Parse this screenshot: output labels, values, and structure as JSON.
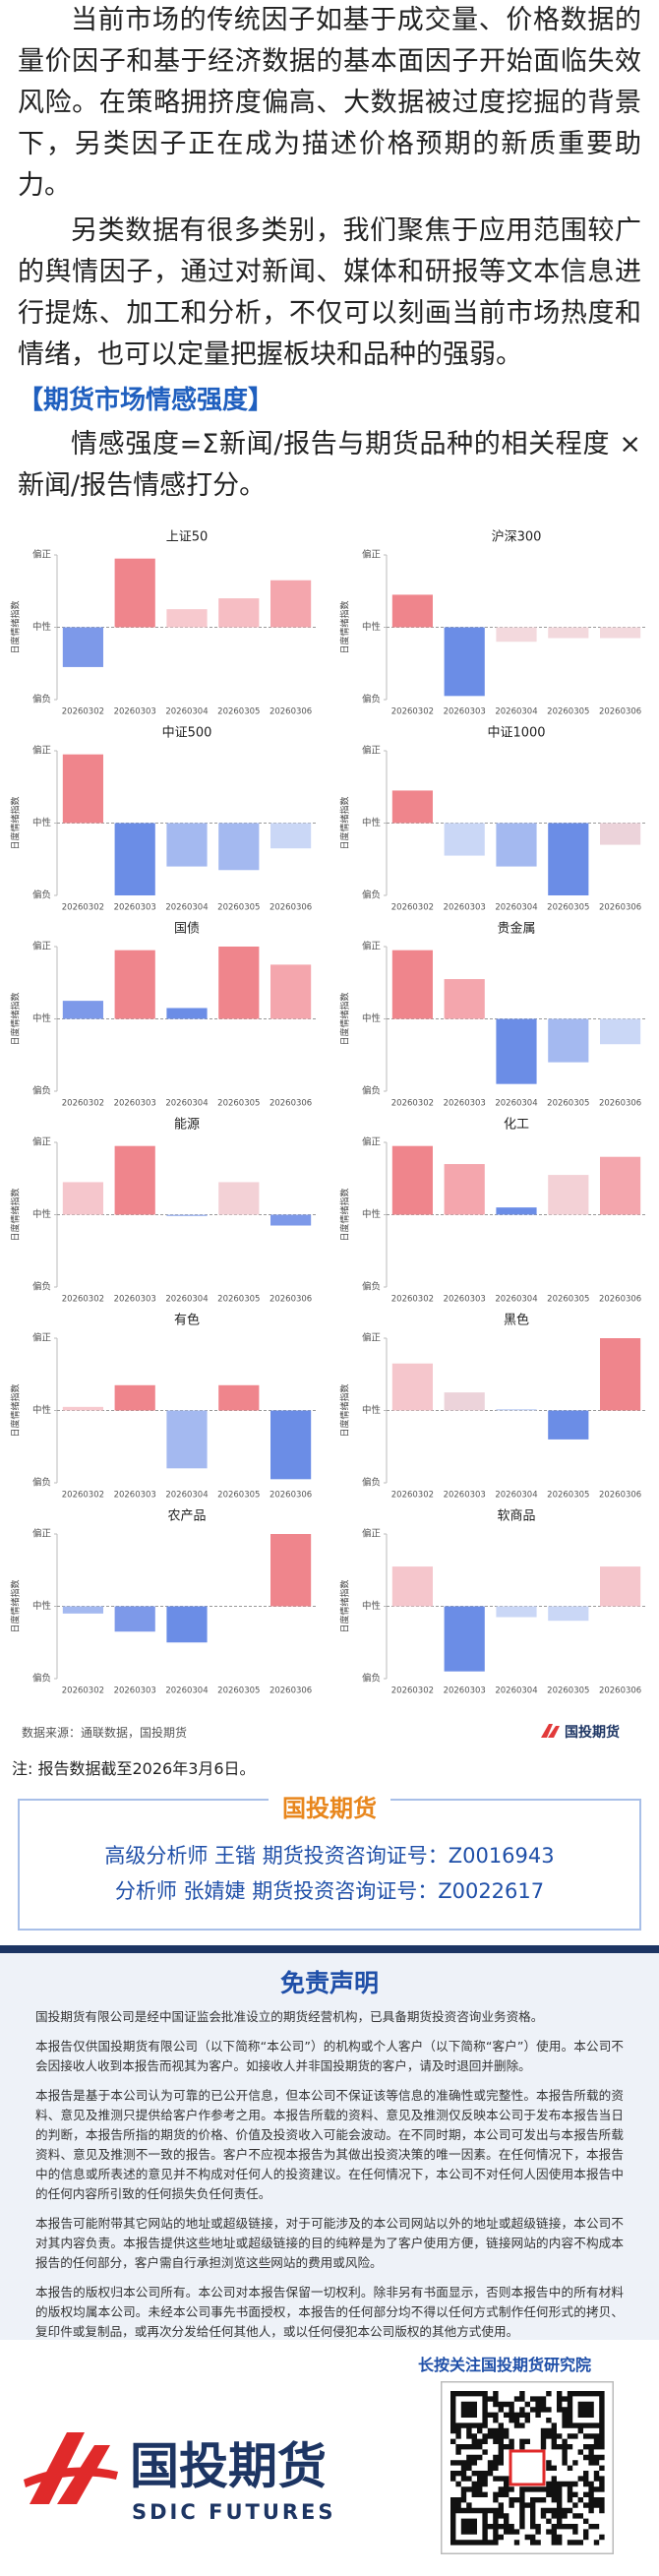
{
  "intro": {
    "paragraphs": [
      "当前市场的传统因子如基于成交量、价格数据的量价因子和基于经济数据的基本面因子开始面临失效风险。在策略拥挤度偏高、大数据被过度挖掘的背景下，另类因子正在成为描述价格预期的新质重要助力。",
      "另类数据有很多类别，我们聚焦于应用范围较广的舆情因子，通过对新闻、媒体和研报等文本信息进行提炼、加工和分析，不仅可以刻画当前市场热度和情绪，也可以定量把握板块和品种的强弱。"
    ],
    "section_heading": "【期货市场情感强度】",
    "formula": "情感强度=Σ新闻/报告与期货品种的相关程度 × 新闻/报告情感打分。"
  },
  "chart_data": [
    {
      "type": "bar",
      "title": "上证50",
      "ylabel": "日度情绪指数",
      "categories": [
        "20260302",
        "20260303",
        "20260304",
        "20260305",
        "20260306"
      ],
      "values": [
        -0.55,
        0.95,
        0.25,
        0.4,
        0.65
      ],
      "colors": [
        "#7d99e9",
        "#ef858c",
        "#f7c9ce",
        "#f6bdc3",
        "#f4a6ad"
      ],
      "ylim": [
        -1,
        1
      ],
      "yticks": [
        {
          "value": 1,
          "label": "偏正"
        },
        {
          "value": 0,
          "label": "中性"
        },
        {
          "value": -1,
          "label": "偏负"
        }
      ]
    },
    {
      "type": "bar",
      "title": "沪深300",
      "ylabel": "日度情绪指数",
      "categories": [
        "20260302",
        "20260303",
        "20260304",
        "20260305",
        "20260306"
      ],
      "values": [
        0.45,
        -0.95,
        -0.2,
        -0.15,
        -0.15
      ],
      "colors": [
        "#ef858c",
        "#6b8de6",
        "#f3d9dd",
        "#f3d9dd",
        "#f3d9dd"
      ],
      "ylim": [
        -1,
        1
      ],
      "yticks": [
        {
          "value": 1,
          "label": "偏正"
        },
        {
          "value": 0,
          "label": "中性"
        },
        {
          "value": -1,
          "label": "偏负"
        }
      ]
    },
    {
      "type": "bar",
      "title": "中证500",
      "ylabel": "日度情绪指数",
      "categories": [
        "20260302",
        "20260303",
        "20260304",
        "20260305",
        "20260306"
      ],
      "values": [
        0.95,
        -1.0,
        -0.6,
        -0.65,
        -0.35
      ],
      "colors": [
        "#ef858c",
        "#6b8de6",
        "#a4b9f0",
        "#a4b9f0",
        "#cad7f6"
      ],
      "ylim": [
        -1,
        1
      ],
      "yticks": [
        {
          "value": 1,
          "label": "偏正"
        },
        {
          "value": 0,
          "label": "中性"
        },
        {
          "value": -1,
          "label": "偏负"
        }
      ]
    },
    {
      "type": "bar",
      "title": "中证1000",
      "ylabel": "日度情绪指数",
      "categories": [
        "20260302",
        "20260303",
        "20260304",
        "20260305",
        "20260306"
      ],
      "values": [
        0.45,
        -0.45,
        -0.6,
        -1.0,
        -0.3
      ],
      "colors": [
        "#ef858c",
        "#cad7f6",
        "#a4b9f0",
        "#6b8de6",
        "#ecd3da"
      ],
      "ylim": [
        -1,
        1
      ],
      "yticks": [
        {
          "value": 1,
          "label": "偏正"
        },
        {
          "value": 0,
          "label": "中性"
        },
        {
          "value": -1,
          "label": "偏负"
        }
      ]
    },
    {
      "type": "bar",
      "title": "国债",
      "ylabel": "日度情绪指数",
      "categories": [
        "20260302",
        "20260303",
        "20260304",
        "20260305",
        "20260306"
      ],
      "values": [
        0.25,
        0.95,
        0.15,
        1.0,
        0.75
      ],
      "colors": [
        "#7d99e9",
        "#ef858c",
        "#6b8de6",
        "#ef858c",
        "#f4a6ad"
      ],
      "ylim": [
        -1,
        1
      ],
      "yticks": [
        {
          "value": 1,
          "label": "偏正"
        },
        {
          "value": 0,
          "label": "中性"
        },
        {
          "value": -1,
          "label": "偏负"
        }
      ]
    },
    {
      "type": "bar",
      "title": "贵金属",
      "ylabel": "日度情绪指数",
      "categories": [
        "20260302",
        "20260303",
        "20260304",
        "20260305",
        "20260306"
      ],
      "values": [
        0.95,
        0.55,
        -0.9,
        -0.6,
        -0.35
      ],
      "colors": [
        "#ef858c",
        "#f4a6ad",
        "#6b8de6",
        "#a4b9f0",
        "#cad7f6"
      ],
      "ylim": [
        -1,
        1
      ],
      "yticks": [
        {
          "value": 1,
          "label": "偏正"
        },
        {
          "value": 0,
          "label": "中性"
        },
        {
          "value": -1,
          "label": "偏负"
        }
      ]
    },
    {
      "type": "bar",
      "title": "能源",
      "ylabel": "日度情绪指数",
      "categories": [
        "20260302",
        "20260303",
        "20260304",
        "20260305",
        "20260306"
      ],
      "values": [
        0.45,
        0.95,
        -0.02,
        0.45,
        -0.15
      ],
      "colors": [
        "#f5c6cc",
        "#ef858c",
        "#a4b9f0",
        "#f3d1d6",
        "#7d99e9"
      ],
      "ylim": [
        -1,
        1
      ],
      "yticks": [
        {
          "value": 1,
          "label": "偏正"
        },
        {
          "value": 0,
          "label": "中性"
        },
        {
          "value": -1,
          "label": "偏负"
        }
      ]
    },
    {
      "type": "bar",
      "title": "化工",
      "ylabel": "日度情绪指数",
      "categories": [
        "20260302",
        "20260303",
        "20260304",
        "20260305",
        "20260306"
      ],
      "values": [
        0.95,
        0.7,
        0.1,
        0.55,
        0.8
      ],
      "colors": [
        "#ef858c",
        "#f4a6ad",
        "#6b8de6",
        "#f3d1d6",
        "#f4a6ad"
      ],
      "ylim": [
        -1,
        1
      ],
      "yticks": [
        {
          "value": 1,
          "label": "偏正"
        },
        {
          "value": 0,
          "label": "中性"
        },
        {
          "value": -1,
          "label": "偏负"
        }
      ]
    },
    {
      "type": "bar",
      "title": "有色",
      "ylabel": "日度情绪指数",
      "categories": [
        "20260302",
        "20260303",
        "20260304",
        "20260305",
        "20260306"
      ],
      "values": [
        0.05,
        0.35,
        -0.8,
        0.35,
        -0.95
      ],
      "colors": [
        "#f7c9ce",
        "#ef858c",
        "#a4b9f0",
        "#ef858c",
        "#6b8de6"
      ],
      "ylim": [
        -1,
        1
      ],
      "yticks": [
        {
          "value": 1,
          "label": "偏正"
        },
        {
          "value": 0,
          "label": "中性"
        },
        {
          "value": -1,
          "label": "偏负"
        }
      ]
    },
    {
      "type": "bar",
      "title": "黑色",
      "ylabel": "日度情绪指数",
      "categories": [
        "20260302",
        "20260303",
        "20260304",
        "20260305",
        "20260306"
      ],
      "values": [
        0.65,
        0.25,
        0.02,
        -0.4,
        1.0
      ],
      "colors": [
        "#f5c6cc",
        "#ecd3da",
        "#cad7f6",
        "#6b8de6",
        "#ef858c"
      ],
      "ylim": [
        -1,
        1
      ],
      "yticks": [
        {
          "value": 1,
          "label": "偏正"
        },
        {
          "value": 0,
          "label": "中性"
        },
        {
          "value": -1,
          "label": "偏负"
        }
      ]
    },
    {
      "type": "bar",
      "title": "农产品",
      "ylabel": "日度情绪指数",
      "categories": [
        "20260302",
        "20260303",
        "20260304",
        "20260305",
        "20260306"
      ],
      "values": [
        -0.1,
        -0.35,
        -0.5,
        0,
        1.0
      ],
      "colors": [
        "#a4b9f0",
        "#7d99e9",
        "#6b8de6",
        "#cad7f6",
        "#ef858c"
      ],
      "ylim": [
        -1,
        1
      ],
      "yticks": [
        {
          "value": 1,
          "label": "偏正"
        },
        {
          "value": 0,
          "label": "中性"
        },
        {
          "value": -1,
          "label": "偏负"
        }
      ]
    },
    {
      "type": "bar",
      "title": "软商品",
      "ylabel": "日度情绪指数",
      "categories": [
        "20260302",
        "20260303",
        "20260304",
        "20260305",
        "20260306"
      ],
      "values": [
        0.55,
        -0.9,
        -0.15,
        -0.2,
        0.55
      ],
      "colors": [
        "#f5c6cc",
        "#6b8de6",
        "#cad7f6",
        "#cad7f6",
        "#f5c6cc"
      ],
      "ylim": [
        -1,
        1
      ],
      "yticks": [
        {
          "value": 1,
          "label": "偏正"
        },
        {
          "value": 0,
          "label": "中性"
        },
        {
          "value": -1,
          "label": "偏负"
        }
      ]
    }
  ],
  "source": "数据来源：通联数据，国投期货",
  "source_logo": "国投期货",
  "note": "注: 报告数据截至2026年3月6日。",
  "analyst_box": {
    "header": "国投期货",
    "lines": [
      "高级分析师 王锴 期货投资咨询证号：Z0016943",
      "分析师 张婧婕 期货投资咨询证号：Z0022617"
    ]
  },
  "disclaimer": {
    "title": "免责声明",
    "paragraphs": [
      "国投期货有限公司是经中国证监会批准设立的期货经营机构，已具备期货投资咨询业务资格。",
      "本报告仅供国投期货有限公司（以下简称“本公司”）的机构或个人客户（以下简称“客户”）使用。本公司不会因接收人收到本报告而视其为客户。如接收人并非国投期货的客户，请及时退回并删除。",
      "本报告是基于本公司认为可靠的已公开信息，但本公司不保证该等信息的准确性或完整性。本报告所载的资料、意见及推测只提供给客户作参考之用。本报告所载的资料、意见及推测仅反映本公司于发布本报告当日的判断，本报告所指的期货的价格、价值及投资收入可能会波动。在不同时期，本公司可发出与本报告所载资料、意见及推测不一致的报告。客户不应视本报告为其做出投资决策的唯一因素。在任何情况下，本报告中的信息或所表述的意见并不构成对任何人的投资建议。在任何情况下，本公司不对任何人因使用本报告中的任何内容所引致的任何损失负任何责任。",
      "本报告可能附带其它网站的地址或超级链接，对于可能涉及的本公司网站以外的地址或超级链接，本公司不对其内容负责。本报告提供这些地址或超级链接的目的纯粹是为了客户使用方便，链接网站的内容不构成本报告的任何部分，客户需自行承担浏览这些网站的费用或风险。",
      "本报告的版权归本公司所有。本公司对本报告保留一切权利。除非另有书面显示，否则本报告中的所有材料的版权均属本公司。未经本公司事先书面授权，本报告的任何部分均不得以任何方式制作任何形式的拷贝、复印件或复制品，或再次分发给任何其他人，或以任何侵犯本公司版权的其他方式使用。"
    ]
  },
  "footer": {
    "logo_cn": "国投期货",
    "logo_en": "SDIC FUTURES",
    "follow_text": "长按关注国投期货研究院"
  }
}
